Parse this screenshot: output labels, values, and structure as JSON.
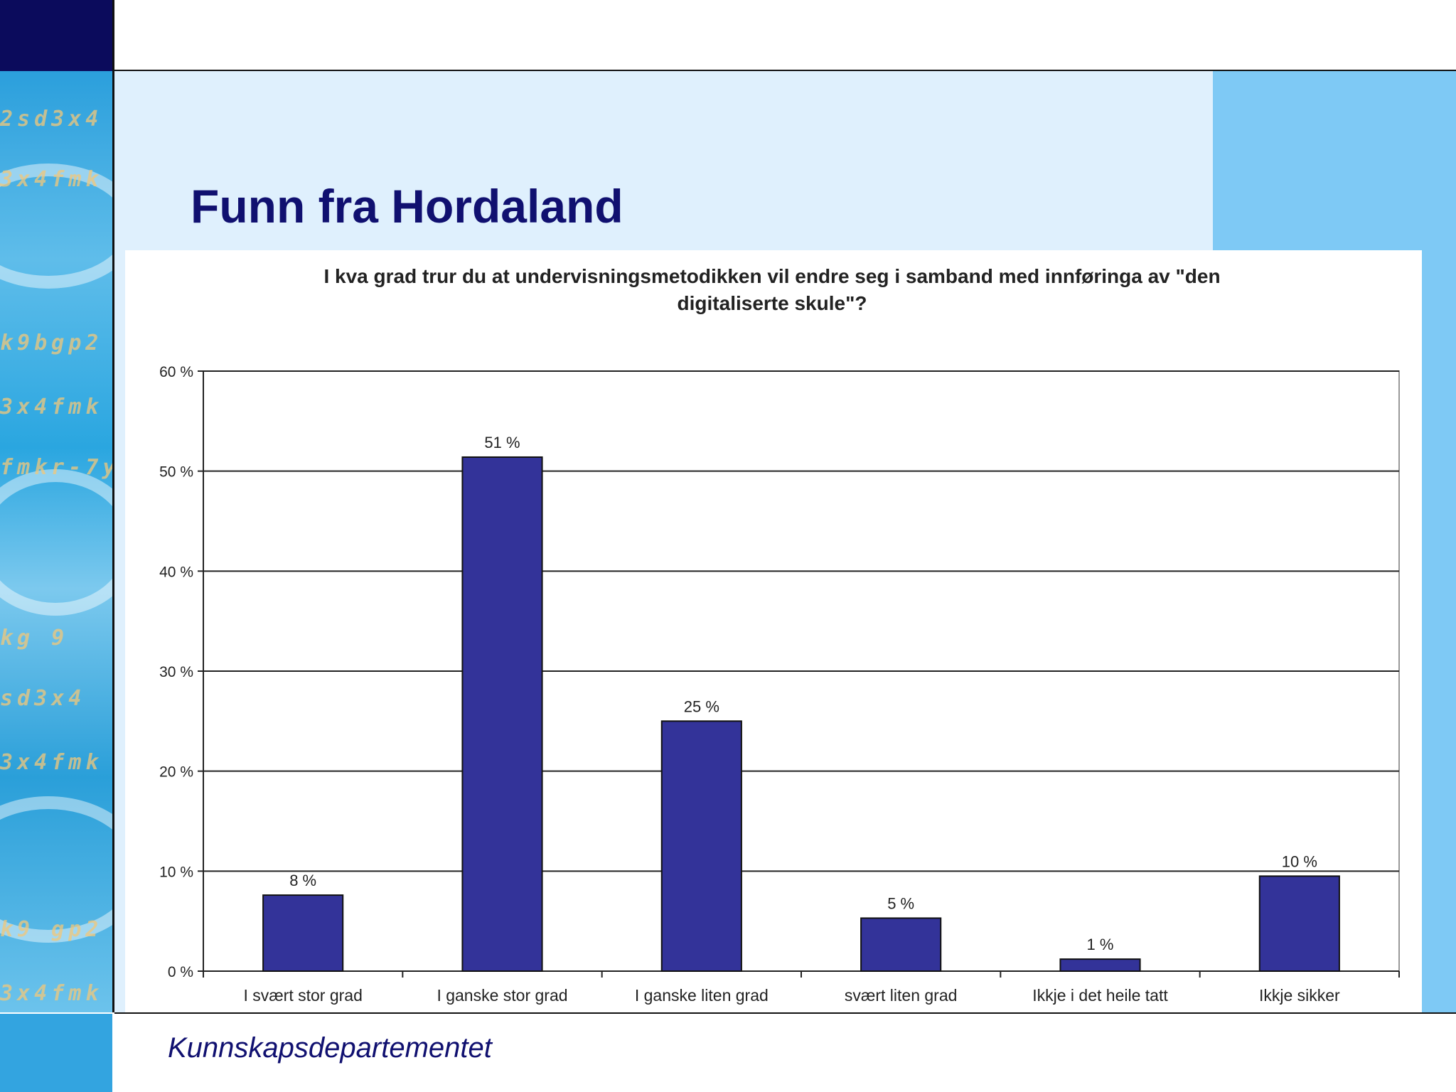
{
  "slide": {
    "title": "Funn fra Hordaland",
    "footer": "Kunnskapsdepartementet"
  },
  "decor": {
    "strip_text": [
      "2sd3x4",
      "3x4fmk",
      "k9bgp2",
      "3x4fmk",
      "fmkr-7y",
      "kg  9",
      "sd3x4",
      "3x4fmk",
      "k9 gp2",
      "3x4fmk"
    ]
  },
  "colors": {
    "bar": "#333399",
    "title": "#101070",
    "panel": "#7ec9f5",
    "background": "#dff0fd"
  },
  "chart_data": {
    "type": "bar",
    "title": "I kva grad trur du at undervisningsmetodikken vil endre seg i samband med innføringa av \"den digitaliserte skule\"?",
    "title_lines": [
      "I kva grad trur du at undervisningsmetodikken vil endre seg i samband med innføringa av \"den",
      "digitaliserte skule\"?"
    ],
    "categories": [
      "I svært stor grad",
      "I ganske stor grad",
      "I ganske liten grad",
      "svært liten grad",
      "Ikkje i det heile tatt",
      "Ikkje sikker"
    ],
    "values": [
      7.6,
      51.4,
      25,
      5.3,
      1.2,
      9.5
    ],
    "data_labels": [
      "8 %",
      "51 %",
      "25 %",
      "5 %",
      "1 %",
      "10 %"
    ],
    "yticks": [
      0,
      10,
      20,
      30,
      40,
      50,
      60
    ],
    "ytick_labels": [
      "0 %",
      "10 %",
      "20 %",
      "30 %",
      "40 %",
      "50 %",
      "60 %"
    ],
    "ylim": [
      0,
      60
    ],
    "xlabel": "",
    "ylabel": "",
    "grid": true,
    "legend": "none"
  }
}
